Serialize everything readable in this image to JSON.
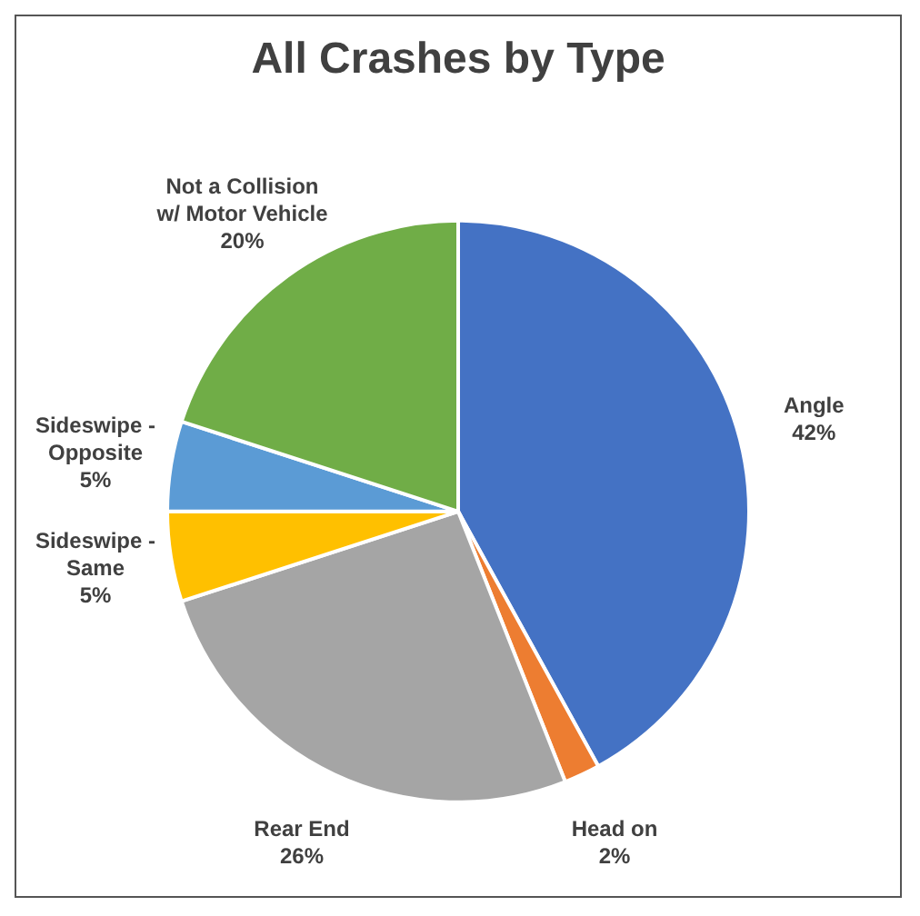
{
  "chart_data": {
    "type": "pie",
    "title": "All Crashes by Type",
    "categories": [
      "Angle",
      "Head on",
      "Rear End",
      "Sideswipe - Same",
      "Sideswipe - Opposite",
      "Not a Collision w/ Motor Vehicle"
    ],
    "values": [
      42,
      2,
      26,
      5,
      5,
      20
    ],
    "colors": [
      "#4472c4",
      "#ed7d31",
      "#a5a5a5",
      "#ffc000",
      "#5b9bd5",
      "#70ad47"
    ],
    "value_labels": [
      "42%",
      "2%",
      "26%",
      "5%",
      "5%",
      "20%"
    ],
    "legend": false
  }
}
